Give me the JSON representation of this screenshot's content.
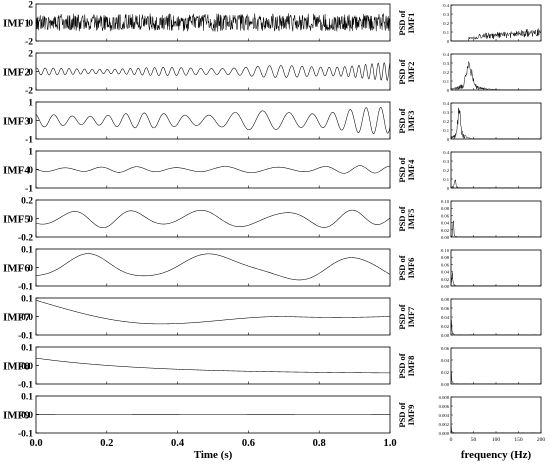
{
  "chart_data": {
    "type": "line",
    "left": {
      "xlabel": "Time (s)",
      "xlim": [
        0,
        1
      ],
      "xticks": [
        "0.0",
        "0.2",
        "0.4",
        "0.6",
        "0.8",
        "1.0"
      ],
      "panels": [
        {
          "name": "IMF1",
          "ylim": [
            -2,
            2
          ],
          "yticks": [
            "2",
            "0",
            "-2"
          ],
          "amp": 1.0,
          "freq": 100,
          "grow": 0.0
        },
        {
          "name": "IMF2",
          "ylim": [
            -2,
            2
          ],
          "yticks": [
            "2",
            "0",
            "-2"
          ],
          "amp": 0.3,
          "freq": 42,
          "grow": 1.6
        },
        {
          "name": "IMF3",
          "ylim": [
            -1,
            1
          ],
          "yticks": [
            "1",
            "0",
            "-1"
          ],
          "amp": 0.3,
          "freq": 18,
          "grow": 1.0
        },
        {
          "name": "IMF4",
          "ylim": [
            -1,
            1
          ],
          "yticks": [
            "1",
            "0",
            "-1"
          ],
          "amp": 0.12,
          "freq": 9,
          "grow": 0.5
        },
        {
          "name": "IMF5",
          "ylim": [
            -0.2,
            0.2
          ],
          "yticks": [
            "0.2",
            "0",
            "-0.2"
          ],
          "amp": 0.08,
          "freq": 5.5,
          "grow": 0.0
        },
        {
          "name": "IMF6",
          "ylim": [
            -0.1,
            0.1
          ],
          "yticks": [
            "0.1",
            "0",
            "-0.1"
          ],
          "amp": 0.06,
          "freq": 2.9,
          "grow": 0.0
        },
        {
          "name": "IMF7",
          "ylim": [
            -0.1,
            0.1
          ],
          "yticks": [
            "0.1",
            "0.0",
            "-0.1"
          ],
          "type": "imf7"
        },
        {
          "name": "IMF8",
          "ylim": [
            -0.1,
            0.1
          ],
          "yticks": [
            "0.1",
            "0.0",
            "-0.1"
          ],
          "type": "imf8"
        },
        {
          "name": "IMF9",
          "ylim": [
            -0.1,
            0.1
          ],
          "yticks": [
            "0.1",
            "0.0",
            "-0.1"
          ],
          "type": "flat"
        }
      ]
    },
    "right": {
      "xlabel": "frequency (Hz)",
      "xlim": [
        0,
        200
      ],
      "xticks": [
        "0",
        "50",
        "100",
        "150",
        "200"
      ],
      "panels": [
        {
          "label_a": "PSD of",
          "label_b": "IMF1",
          "yticks": [
            "0.4",
            "0.3",
            "0.2",
            "0.1",
            "0"
          ],
          "ymax": 0.4,
          "peak_hz": 120,
          "kind": "broad"
        },
        {
          "label_a": "PSD of",
          "label_b": "IMF2",
          "yticks": [
            "0.4",
            "0.3",
            "0.2",
            "0.1",
            "0"
          ],
          "ymax": 0.4,
          "peak_hz": 40,
          "peak": 0.28,
          "kind": "peak"
        },
        {
          "label_a": "PSD of",
          "label_b": "IMF3",
          "yticks": [
            "0.4",
            "0.3",
            "0.2",
            "0.1",
            "0"
          ],
          "ymax": 0.4,
          "peak_hz": 18,
          "peak": 0.34,
          "kind": "peak"
        },
        {
          "label_a": "PSD of",
          "label_b": "IMF4",
          "yticks": [
            "0.4",
            "0.3",
            "0.2",
            "0.1",
            "0"
          ],
          "ymax": 0.4,
          "peak_hz": 9,
          "peak": 0.1,
          "kind": "peak"
        },
        {
          "label_a": "PSD of",
          "label_b": "IMF5",
          "yticks": [
            "0.10",
            "0.08",
            "0.06",
            "0.04",
            "0.02",
            "0.00"
          ],
          "ymax": 0.1,
          "peak_hz": 5,
          "peak": 0.05,
          "kind": "peak"
        },
        {
          "label_a": "PSD of",
          "label_b": "IMF6",
          "yticks": [
            "0.10",
            "0.08",
            "0.06",
            "0.04",
            "0.02",
            "0.00"
          ],
          "ymax": 0.1,
          "peak_hz": 3,
          "peak": 0.04,
          "kind": "peak"
        },
        {
          "label_a": "PSD of",
          "label_b": "IMF7",
          "yticks": [
            "0.08",
            "0.06",
            "0.04",
            "0.02",
            "0.00"
          ],
          "ymax": 0.08,
          "peak_hz": 1,
          "peak": 0.03,
          "kind": "peak"
        },
        {
          "label_a": "PSD of",
          "label_b": "IMF8",
          "yticks": [
            "0.06",
            "0.04",
            "0.02",
            "0.00"
          ],
          "ymax": 0.06,
          "peak_hz": 0.5,
          "peak": 0.02,
          "kind": "peak"
        },
        {
          "label_a": "PSD of",
          "label_b": "IMF9",
          "yticks": [
            "0.008",
            "0.006",
            "0.004",
            "0.002",
            "0.000"
          ],
          "ymax": 0.008,
          "peak_hz": 0.2,
          "peak": 0.0015,
          "kind": "peak"
        }
      ]
    }
  }
}
